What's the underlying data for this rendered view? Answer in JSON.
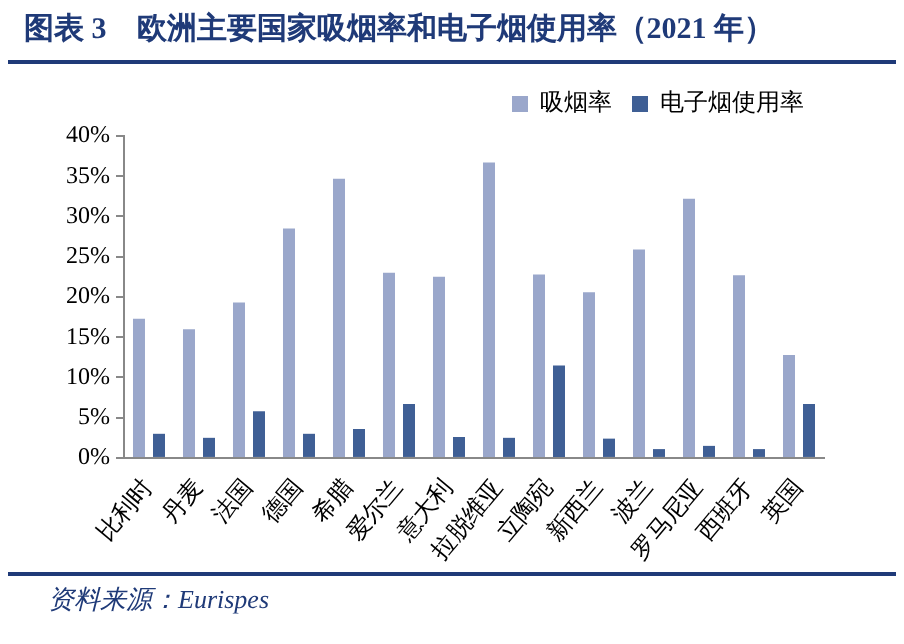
{
  "chart_data": {
    "type": "bar",
    "title": "图表 3　欧洲主要国家吸烟率和电子烟使用率（2021 年）",
    "categories": [
      "比利时",
      "丹麦",
      "法国",
      "德国",
      "希腊",
      "爱尔兰",
      "意大利",
      "拉脱维亚",
      "立陶宛",
      "新西兰",
      "波兰",
      "罗马尼亚",
      "西班牙",
      "英国"
    ],
    "series": [
      {
        "name": "吸烟率",
        "color": "#9aa7cb",
        "values": [
          17.3,
          16.0,
          19.3,
          28.5,
          34.7,
          23.0,
          22.5,
          36.7,
          22.8,
          20.6,
          25.9,
          32.2,
          22.7,
          12.8
        ]
      },
      {
        "name": "电子烟使用率",
        "color": "#3f5f95",
        "values": [
          3.0,
          2.5,
          5.8,
          3.0,
          3.6,
          6.7,
          2.6,
          2.5,
          11.5,
          2.4,
          1.1,
          1.5,
          1.1,
          6.7
        ]
      }
    ],
    "ylim": [
      0,
      40
    ],
    "yticks": [
      {
        "value": 0,
        "label": "0%"
      },
      {
        "value": 5,
        "label": "5%"
      },
      {
        "value": 10,
        "label": "10%"
      },
      {
        "value": 15,
        "label": "15%"
      },
      {
        "value": 20,
        "label": "20%"
      },
      {
        "value": 25,
        "label": "25%"
      },
      {
        "value": 30,
        "label": "30%"
      },
      {
        "value": 35,
        "label": "35%"
      },
      {
        "value": 40,
        "label": "40%"
      }
    ],
    "grid": false,
    "legend": "top right",
    "annotations": [
      "资料来源：Eurispes"
    ]
  }
}
